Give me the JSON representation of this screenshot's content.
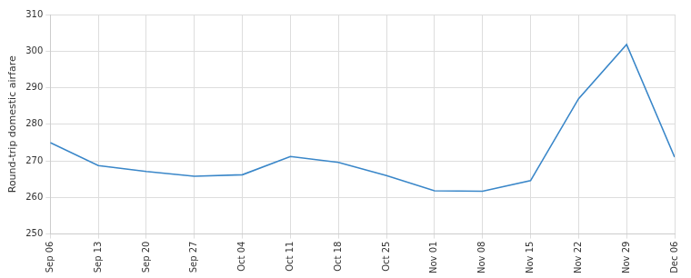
{
  "chart_data": {
    "type": "line",
    "y_label": "Round-trip domestic airfare",
    "categories": [
      "Sep 06",
      "Sep 13",
      "Sep 20",
      "Sep 27",
      "Oct 04",
      "Oct 11",
      "Oct 18",
      "Oct 25",
      "Nov 01",
      "Nov 08",
      "Nov 15",
      "Nov 22",
      "Nov 29",
      "Dec 06"
    ],
    "values": [
      275,
      268.7,
      267.1,
      265.8,
      266.2,
      271.2,
      269.6,
      266,
      261.8,
      261.7,
      264.6,
      287,
      301.8,
      271
    ],
    "color": "#3a87c9",
    "ylim": [
      250,
      310
    ],
    "yticks": [
      250,
      260,
      270,
      280,
      290,
      300,
      310
    ],
    "grid": true
  }
}
